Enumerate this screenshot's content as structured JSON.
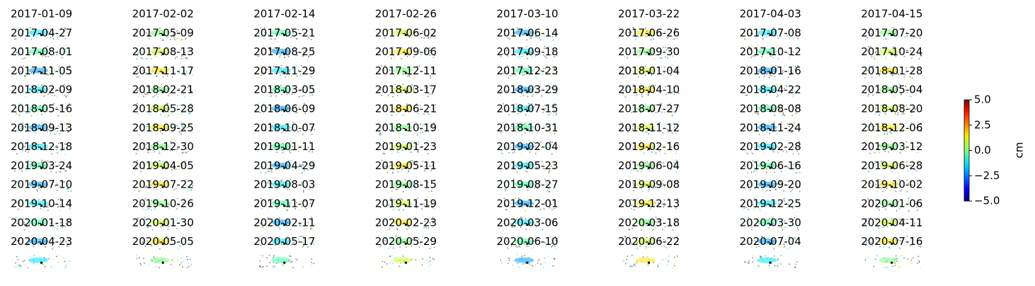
{
  "chart_data": {
    "type": "image-grid",
    "titles": [
      "2017-01-09",
      "2017-02-02",
      "2017-02-14",
      "2017-02-26",
      "2017-03-10",
      "2017-03-22",
      "2017-04-03",
      "2017-04-15",
      "2017-04-27",
      "2017-05-09",
      "2017-05-21",
      "2017-06-02",
      "2017-06-14",
      "2017-06-26",
      "2017-07-08",
      "2017-07-20",
      "2017-08-01",
      "2017-08-13",
      "2017-08-25",
      "2017-09-06",
      "2017-09-18",
      "2017-09-30",
      "2017-10-12",
      "2017-10-24",
      "2017-11-05",
      "2017-11-17",
      "2017-11-29",
      "2017-12-11",
      "2017-12-23",
      "2018-01-04",
      "2018-01-16",
      "2018-01-28",
      "2018-02-09",
      "2018-02-21",
      "2018-03-05",
      "2018-03-17",
      "2018-03-29",
      "2018-04-10",
      "2018-04-22",
      "2018-05-04",
      "2018-05-16",
      "2018-05-28",
      "2018-06-09",
      "2018-06-21",
      "2018-07-15",
      "2018-07-27",
      "2018-08-08",
      "2018-08-20",
      "2018-09-13",
      "2018-09-25",
      "2018-10-07",
      "2018-10-19",
      "2018-10-31",
      "2018-11-12",
      "2018-11-24",
      "2018-12-06",
      "2018-12-18",
      "2018-12-30",
      "2019-01-11",
      "2019-01-23",
      "2019-02-04",
      "2019-02-16",
      "2019-02-28",
      "2019-03-12",
      "2019-03-24",
      "2019-04-05",
      "2019-04-29",
      "2019-05-11",
      "2019-05-23",
      "2019-06-04",
      "2019-06-16",
      "2019-06-28",
      "2019-07-10",
      "2019-07-22",
      "2019-08-03",
      "2019-08-15",
      "2019-08-27",
      "2019-09-08",
      "2019-09-20",
      "2019-10-02",
      "2019-10-14",
      "2019-10-26",
      "2019-11-07",
      "2019-11-19",
      "2019-12-01",
      "2019-12-13",
      "2019-12-25",
      "2020-01-06",
      "2020-01-18",
      "2020-01-30",
      "2020-02-11",
      "2020-02-23",
      "2020-03-06",
      "2020-03-18",
      "2020-03-30",
      "2020-04-11",
      "2020-04-23",
      "2020-05-05",
      "2020-05-17",
      "2020-05-29",
      "2020-06-10",
      "2020-06-22",
      "2020-07-04",
      "2020-07-16"
    ],
    "colorbar": {
      "label": "cm",
      "lim": [
        -5,
        5
      ],
      "ticks": [
        {
          "value": -5,
          "label": "−5.0"
        },
        {
          "value": -2.5,
          "label": "−2.5"
        },
        {
          "value": 0,
          "label": "0.0"
        },
        {
          "value": 2.5,
          "label": "2.5"
        },
        {
          "value": 5,
          "label": "5.0"
        }
      ]
    }
  }
}
